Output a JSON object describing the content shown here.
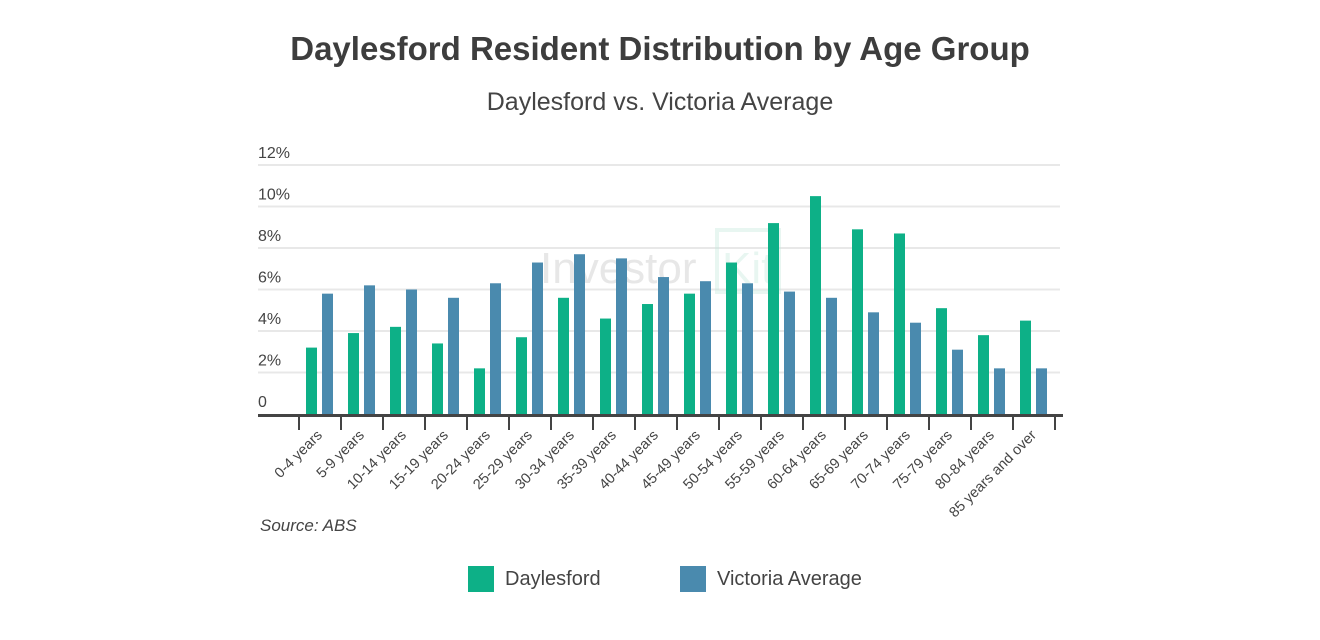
{
  "chart_data": {
    "type": "bar",
    "title": "Daylesford Resident Distribution by Age Group",
    "subtitle": "Daylesford vs. Victoria Average",
    "xlabel": "",
    "ylabel": "",
    "ylim": [
      0,
      12
    ],
    "yticks": [
      "0",
      "2%",
      "4%",
      "6%",
      "8%",
      "10%",
      "12%"
    ],
    "grid": true,
    "legend_position": "bottom",
    "categories": [
      "0-4 years",
      "5-9 years",
      "10-14 years",
      "15-19 years",
      "20-24 years",
      "25-29 years",
      "30-34 years",
      "35-39 years",
      "40-44 years",
      "45-49 years",
      "50-54 years",
      "55-59 years",
      "60-64 years",
      "65-69 years",
      "70-74 years",
      "75-79 years",
      "80-84 years",
      "85 years and over"
    ],
    "series": [
      {
        "name": "Daylesford",
        "color": "#0db087",
        "values": [
          3.2,
          3.9,
          4.2,
          3.4,
          2.2,
          3.7,
          5.6,
          4.6,
          5.3,
          5.8,
          7.3,
          9.2,
          10.5,
          8.9,
          8.7,
          5.1,
          3.8,
          4.5
        ]
      },
      {
        "name": "Victoria Average",
        "color": "#4a8aae",
        "values": [
          5.8,
          6.2,
          6.0,
          5.6,
          6.3,
          7.3,
          7.7,
          7.5,
          6.6,
          6.4,
          6.3,
          5.9,
          5.6,
          4.9,
          4.4,
          3.1,
          2.2,
          2.2
        ]
      }
    ],
    "source": "Source: ABS",
    "watermark": "Investor Kit"
  }
}
